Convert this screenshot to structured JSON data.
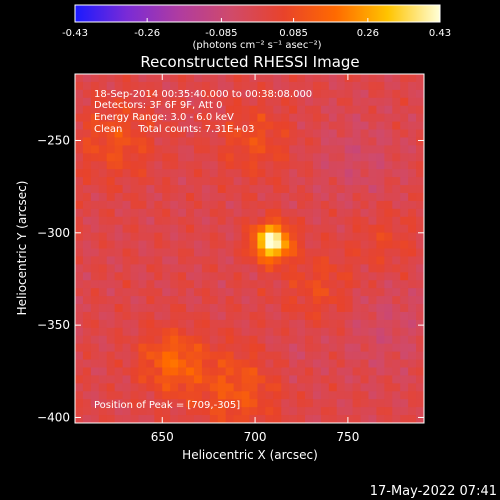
{
  "colorbar": {
    "ticks": [
      "-0.43",
      "-0.26",
      "-0.085",
      "0.085",
      "0.26",
      "0.43"
    ],
    "unit": "(photons cm⁻² s⁻¹ asec⁻²)",
    "colormap": [
      "#1a1aff",
      "#7a2bd6",
      "#b03ca0",
      "#d04a6a",
      "#e8432b",
      "#ff6a00",
      "#ffc400",
      "#ffffd8"
    ]
  },
  "chart_data": {
    "type": "heatmap",
    "title": "Reconstructed RHESSI Image",
    "xlabel": "Heliocentric X (arcsec)",
    "ylabel": "Heliocentric Y (arcsec)",
    "xlim": [
      603,
      791
    ],
    "ylim": [
      -403,
      -214
    ],
    "xticks": [
      650,
      700,
      750
    ],
    "yticks": [
      -250,
      -300,
      -350,
      -400
    ],
    "value_range": [
      -0.43,
      0.43
    ],
    "annotations": [
      "18-Sep-2014 00:35:40.000 to 00:38:08.000",
      "Detectors: 3F 6F 9F, Att 0",
      "Energy Range: 3.0 - 6.0 keV",
      "Clean     Total counts: 7.31E+03"
    ],
    "peak_label": "Position of Peak = [709,-305]",
    "peak": {
      "x": 709,
      "y": -305,
      "value": 0.43
    },
    "sources": [
      {
        "x": 709,
        "y": -305,
        "value": 0.43,
        "sigma": 7
      },
      {
        "x": 655,
        "y": -370,
        "value": 0.16,
        "sigma": 12
      },
      {
        "x": 690,
        "y": -385,
        "value": 0.12,
        "sigma": 16
      },
      {
        "x": 625,
        "y": -250,
        "value": 0.1,
        "sigma": 15
      },
      {
        "x": 700,
        "y": -250,
        "value": 0.09,
        "sigma": 14
      },
      {
        "x": 735,
        "y": -330,
        "value": 0.08,
        "sigma": 14
      },
      {
        "x": 770,
        "y": -305,
        "value": 0.06,
        "sigma": 12
      },
      {
        "x": 755,
        "y": -260,
        "value": -0.05,
        "sigma": 16
      },
      {
        "x": 770,
        "y": -350,
        "value": -0.05,
        "sigma": 18
      },
      {
        "x": 720,
        "y": -365,
        "value": -0.03,
        "sigma": 10
      }
    ]
  },
  "timestamp": "17-May-2022 07:41"
}
